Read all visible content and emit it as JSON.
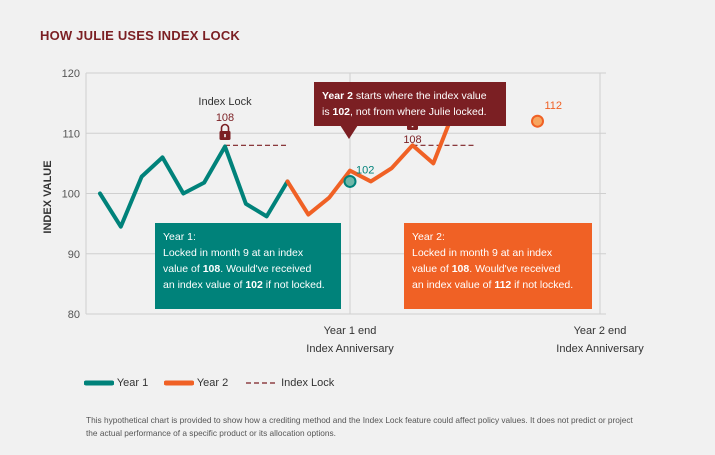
{
  "title": "HOW JULIE USES INDEX LOCK",
  "chart_data": {
    "type": "line",
    "ylabel": "INDEX VALUE",
    "ylim": [
      80,
      120
    ],
    "yticks": [
      80,
      90,
      100,
      110,
      120
    ],
    "grid": true,
    "x_markers": [
      {
        "month": 12,
        "label_line1": "Year 1 end",
        "label_line2": "Index Anniversary"
      },
      {
        "month": 24,
        "label_line1": "Year 2 end",
        "label_line2": "Index Anniversary"
      }
    ],
    "series": [
      {
        "name": "Year 1",
        "color": "#00827a",
        "x": [
          0,
          1,
          2,
          3,
          4,
          5,
          6,
          7,
          8,
          9,
          10,
          11,
          12
        ],
        "values": [
          100,
          94.5,
          102.8,
          106,
          100,
          101.8,
          107.8,
          98.3,
          96.2,
          102,
          null,
          null,
          null
        ]
      },
      {
        "name": "Year 2",
        "color": "#f06125",
        "x": [
          9,
          10,
          11,
          12,
          13,
          14,
          15,
          16,
          17,
          18,
          19,
          20,
          21
        ],
        "values": [
          102,
          96.5,
          99.3,
          103.8,
          102,
          104.2,
          108,
          105,
          113.8,
          112,
          null,
          null,
          null
        ]
      }
    ],
    "index_lock_lines": [
      {
        "name": "Index Lock",
        "y": 108,
        "from_month": 6,
        "to_month": 9
      },
      {
        "name": "Index Lock",
        "y": 108,
        "from_month": 15,
        "to_month": 18
      }
    ],
    "annotations": {
      "index_lock_label": "Index Lock",
      "lock1_value": "108",
      "lock2_value": "108",
      "point_102": "102",
      "point_112": "112"
    },
    "legend": [
      "Year 1",
      "Year 2",
      "Index Lock"
    ]
  },
  "callouts": {
    "top_pre": "Year 2",
    "top_mid": " starts where the index value",
    "top_line2_pre": "is ",
    "top_line2_bold": "102",
    "top_line2_post": ", not from where Julie locked.",
    "y1_heading": "Year 1:",
    "y1_line1": "Locked in month 9 at an index",
    "y1_line2_pre": "value of ",
    "y1_line2_bold": "108",
    "y1_line2_post": ". Would've received",
    "y1_line3_pre": "an index value of ",
    "y1_line3_bold": "102",
    "y1_line3_post": " if not locked.",
    "y2_heading": "Year 2:",
    "y2_line1": "Locked in month 9 at an index",
    "y2_line2_pre": "value of ",
    "y2_line2_bold": "108",
    "y2_line2_post": ". Would've received",
    "y2_line3_pre": "an index value of ",
    "y2_line3_bold": "112",
    "y2_line3_post": " if not locked."
  },
  "legend": {
    "year1": "Year 1",
    "year2": "Year 2",
    "lock": "Index Lock"
  },
  "disclaimer": "This hypothetical chart is provided to show how a crediting method and the Index Lock feature could affect policy values. It does not predict or project the actual performance of a specific product or its allocation options."
}
